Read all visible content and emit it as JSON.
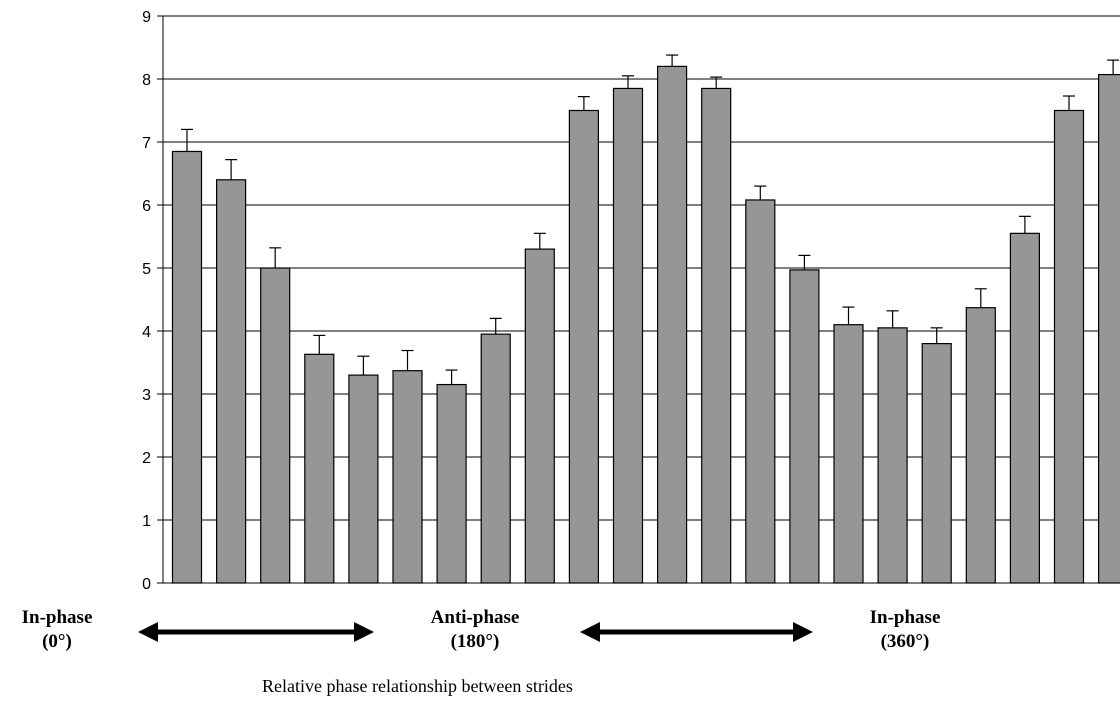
{
  "chart_data": {
    "type": "bar",
    "title": "",
    "xlabel": "Relative phase relationship between strides",
    "ylabel": "",
    "ylim": [
      0,
      9
    ],
    "yticks": [
      0,
      1,
      2,
      3,
      4,
      5,
      6,
      7,
      8,
      9
    ],
    "grid": true,
    "legend": "none",
    "bar_color": "#969696",
    "series": [
      {
        "values": [
          6.85,
          6.4,
          5.0,
          3.63,
          3.3,
          3.37,
          3.15,
          3.95,
          5.3,
          7.5,
          7.85,
          8.2,
          7.85,
          6.08,
          4.97,
          4.1,
          4.05,
          3.8,
          4.37,
          5.55,
          7.5,
          8.07
        ],
        "error": [
          0.35,
          0.32,
          0.32,
          0.3,
          0.3,
          0.32,
          0.23,
          0.25,
          0.25,
          0.22,
          0.2,
          0.18,
          0.18,
          0.22,
          0.23,
          0.28,
          0.27,
          0.25,
          0.3,
          0.27,
          0.23,
          0.23
        ]
      }
    ],
    "annotations": [
      {
        "line1": "In-phase",
        "line2": "(0°)"
      },
      {
        "line1": "Anti-phase",
        "line2": "(180°)"
      },
      {
        "line1": "In-phase",
        "line2": "(360°)"
      }
    ]
  }
}
